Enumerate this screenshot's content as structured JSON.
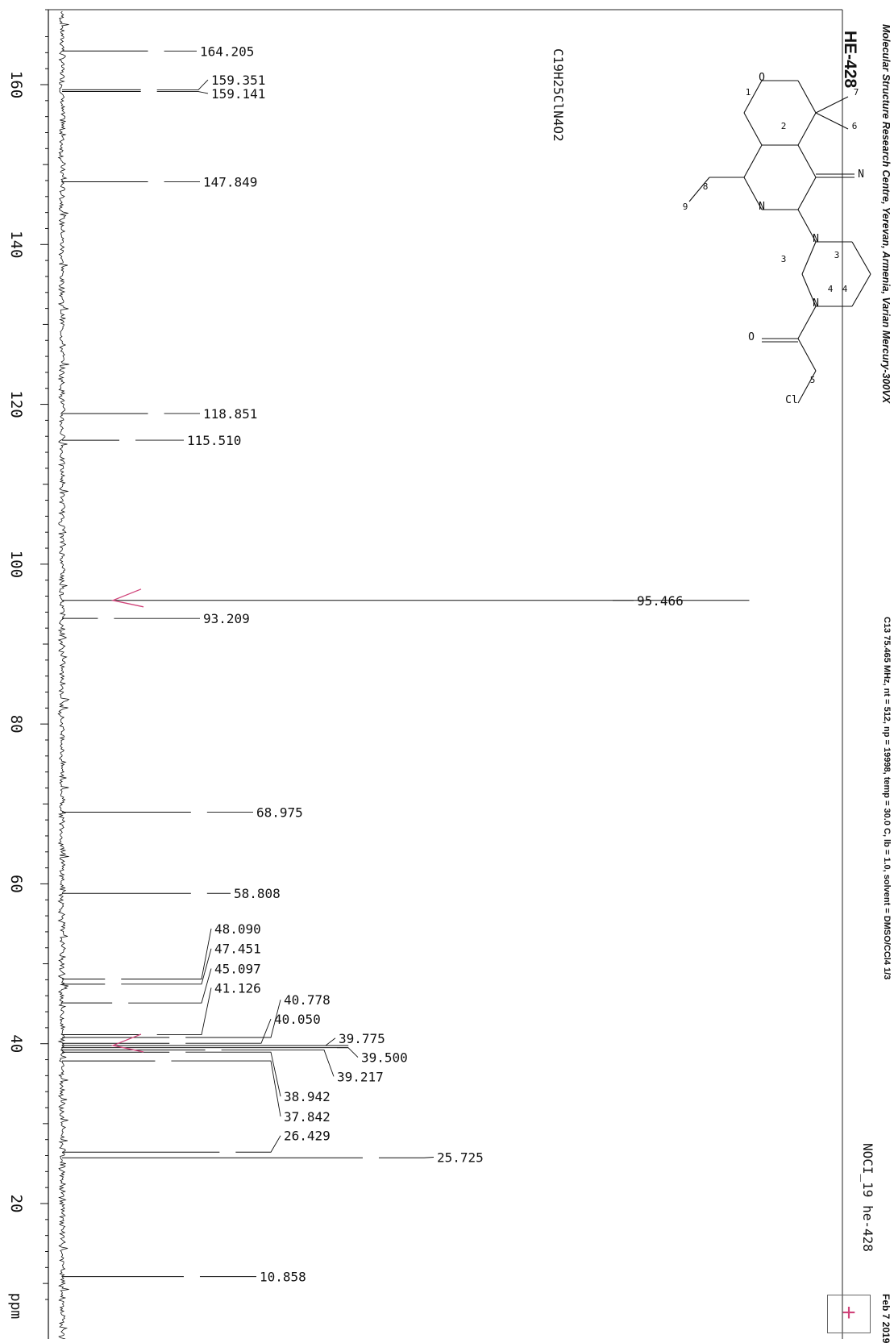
{
  "sample_id": "HE-428",
  "lab": "Molecular Structure Research Centre, Yerevan, Armenia, Varian Mercury-300VX",
  "params": "C13  75.465 MHz, nt = 512, np = 19998, temp = 30.0 C, lb = 1.0, solvent = DMSO/CCl4 1/3",
  "sample_name": "NOCI_19   he-428",
  "date": "Feb  7 2019",
  "formula": "C19H25ClN4O2",
  "stamp": "+",
  "colors": {
    "trace": "#111111",
    "annotation": "#d0447a"
  },
  "chart_data": {
    "type": "line",
    "title": "",
    "xlabel": "ppm",
    "ylabel": "",
    "x_range": [
      166,
      8
    ],
    "x_ticks": [
      160,
      140,
      120,
      100,
      80,
      60,
      40,
      20
    ],
    "tick_labels": [
      "160",
      "140",
      "120",
      "100",
      "80",
      "60",
      "40",
      "20"
    ],
    "grid": false,
    "peaks": [
      {
        "x": 164.205,
        "y": 0.12,
        "label": "164.205"
      },
      {
        "x": 159.351,
        "y": 0.11,
        "label": "159.351"
      },
      {
        "x": 159.141,
        "y": 0.11,
        "label": "159.141"
      },
      {
        "x": 147.849,
        "y": 0.12,
        "label": "147.849"
      },
      {
        "x": 118.851,
        "y": 0.12,
        "label": "118.851"
      },
      {
        "x": 115.51,
        "y": 0.08,
        "label": "115.510"
      },
      {
        "x": 95.466,
        "y": 0.96,
        "label": "95.466"
      },
      {
        "x": 93.209,
        "y": 0.05,
        "label": "93.209"
      },
      {
        "x": 68.975,
        "y": 0.18,
        "label": "68.975"
      },
      {
        "x": 58.808,
        "y": 0.18,
        "label": "58.808"
      },
      {
        "x": 48.09,
        "y": 0.06,
        "label": "48.090"
      },
      {
        "x": 47.451,
        "y": 0.06,
        "label": "47.451"
      },
      {
        "x": 45.097,
        "y": 0.07,
        "label": "45.097"
      },
      {
        "x": 41.126,
        "y": 0.11,
        "label": "41.126"
      },
      {
        "x": 40.778,
        "y": 0.15,
        "label": "40.778"
      },
      {
        "x": 40.05,
        "y": 0.15,
        "label": "40.050"
      },
      {
        "x": 39.775,
        "y": 0.4,
        "label": "39.775"
      },
      {
        "x": 39.5,
        "y": 0.4,
        "label": "39.500"
      },
      {
        "x": 39.217,
        "y": 0.2,
        "label": "39.217"
      },
      {
        "x": 38.942,
        "y": 0.15,
        "label": "38.942"
      },
      {
        "x": 37.842,
        "y": 0.13,
        "label": "37.842"
      },
      {
        "x": 26.429,
        "y": 0.22,
        "label": "26.429"
      },
      {
        "x": 25.725,
        "y": 0.42,
        "label": "25.725"
      },
      {
        "x": 10.858,
        "y": 0.17,
        "label": "10.858"
      }
    ]
  },
  "structure": {
    "atom_labels": [
      "O",
      "N",
      "N",
      "N",
      "N",
      "O",
      "Cl"
    ],
    "position_numbers": [
      "1",
      "2",
      "3",
      "3",
      "4",
      "4",
      "5",
      "6",
      "7",
      "8",
      "9"
    ]
  }
}
